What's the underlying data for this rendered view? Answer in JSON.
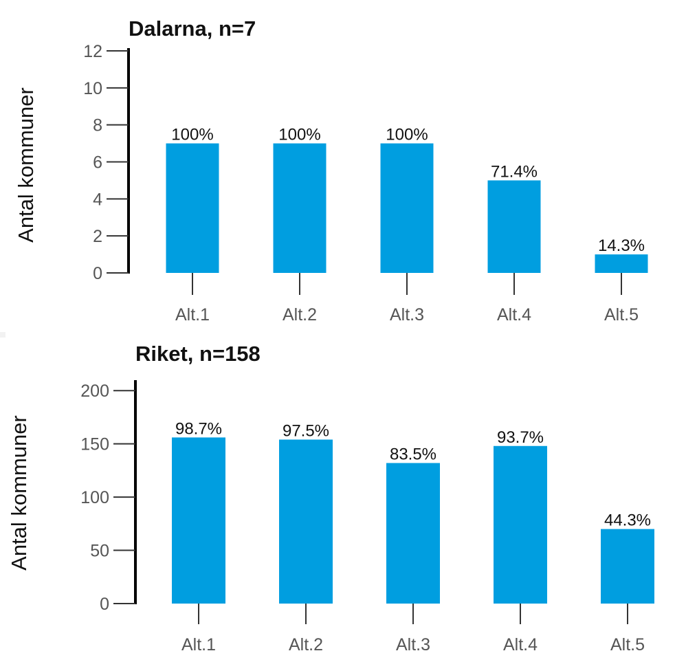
{
  "chart_data": [
    {
      "type": "bar",
      "title": "Dalarna, n=7",
      "ylabel": "Antal kommuner",
      "xlabel": "",
      "categories": [
        "Alt.1",
        "Alt.2",
        "Alt.3",
        "Alt.4",
        "Alt.5"
      ],
      "values": [
        7,
        7,
        7,
        5,
        1
      ],
      "data_labels": [
        "100%",
        "100%",
        "100%",
        "71.4%",
        "14.3%"
      ],
      "ylim": [
        0,
        12
      ],
      "yticks": [
        0,
        2,
        4,
        6,
        8,
        10,
        12
      ],
      "bar_color": "#009ee0",
      "grid": false
    },
    {
      "type": "bar",
      "title": "Riket, n=158",
      "ylabel": "Antal kommuner",
      "xlabel": "",
      "categories": [
        "Alt.1",
        "Alt.2",
        "Alt.3",
        "Alt.4",
        "Alt.5"
      ],
      "values": [
        156,
        154,
        132,
        148,
        70
      ],
      "data_labels": [
        "98.7%",
        "97.5%",
        "83.5%",
        "93.7%",
        "44.3%"
      ],
      "ylim": [
        0,
        235
      ],
      "yticks": [
        0,
        50,
        100,
        150,
        200
      ],
      "bar_color": "#009ee0",
      "grid": false
    }
  ]
}
